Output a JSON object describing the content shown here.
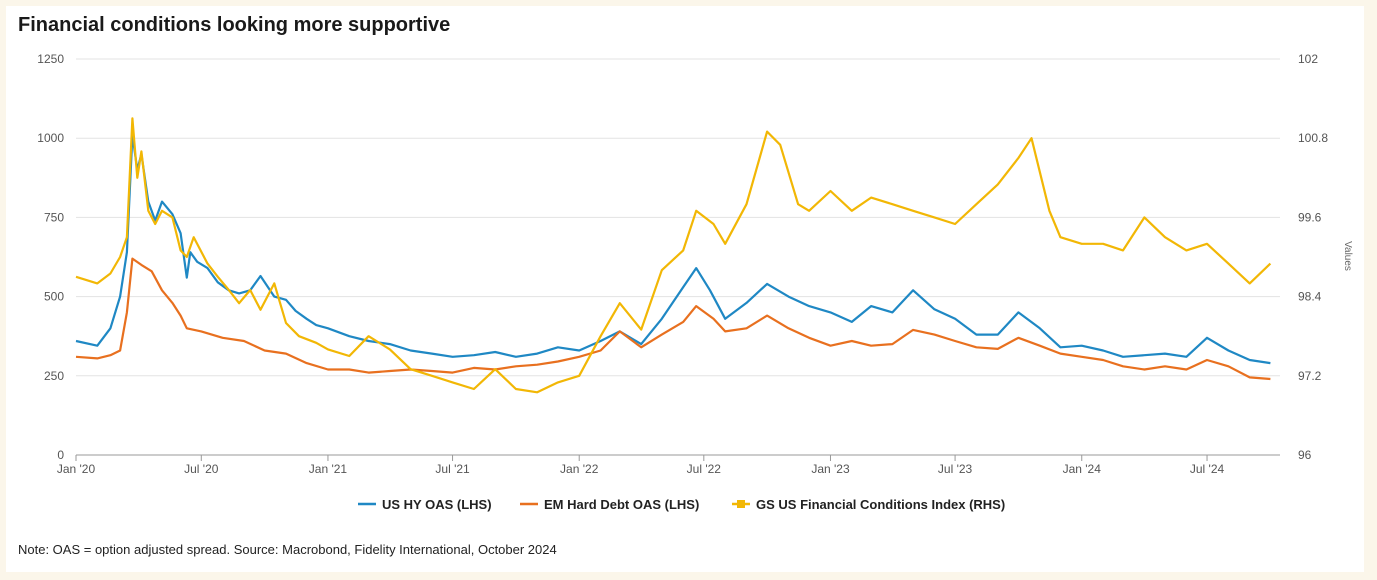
{
  "title": "Financial conditions looking more supportive",
  "note": "Note: OAS = option adjusted spread. Source: Macrobond, Fidelity International, October 2024",
  "chart_data": {
    "type": "line",
    "title": "Financial conditions looking more supportive",
    "x_tick_labels": [
      "Jan '20",
      "Jul '20",
      "Jan '21",
      "Jul '21",
      "Jan '22",
      "Jul '22",
      "Jan '23",
      "Jul '23",
      "Jan '24",
      "Jul '24"
    ],
    "y_left": {
      "ticks": [
        0,
        250,
        500,
        750,
        1000,
        1250
      ],
      "ylim": [
        0,
        1250
      ]
    },
    "y_right": {
      "ticks": [
        "96",
        "97.2",
        "98.4",
        "99.6",
        "100.8",
        "102"
      ],
      "ylim": [
        96,
        102
      ],
      "label": "Values"
    },
    "grid": true,
    "legend_position": "bottom-center",
    "series": [
      {
        "name": "US HY OAS (LHS)",
        "axis": "left",
        "color": "#1f88c4",
        "points": [
          [
            "2020-01",
            360
          ],
          [
            "2020-02",
            345
          ],
          [
            "2020-02-20",
            400
          ],
          [
            "2020-03-05",
            500
          ],
          [
            "2020-03-15",
            640
          ],
          [
            "2020-03-23",
            1010
          ],
          [
            "2020-03-30",
            900
          ],
          [
            "2020-04-05",
            950
          ],
          [
            "2020-04-15",
            800
          ],
          [
            "2020-04-25",
            740
          ],
          [
            "2020-05-05",
            800
          ],
          [
            "2020-05-20",
            760
          ],
          [
            "2020-06-01",
            700
          ],
          [
            "2020-06-10",
            560
          ],
          [
            "2020-06-15",
            640
          ],
          [
            "2020-06-25",
            610
          ],
          [
            "2020-07-10",
            590
          ],
          [
            "2020-07-25",
            545
          ],
          [
            "2020-08-10",
            520
          ],
          [
            "2020-08-25",
            510
          ],
          [
            "2020-09-10",
            520
          ],
          [
            "2020-09-25",
            565
          ],
          [
            "2020-10-15",
            500
          ],
          [
            "2020-11-01",
            490
          ],
          [
            "2020-11-15",
            455
          ],
          [
            "2020-12-01",
            430
          ],
          [
            "2020-12-15",
            410
          ],
          [
            "2021-01-01",
            400
          ],
          [
            "2021-02-01",
            375
          ],
          [
            "2021-03-01",
            360
          ],
          [
            "2021-04-01",
            350
          ],
          [
            "2021-05-01",
            330
          ],
          [
            "2021-06-01",
            320
          ],
          [
            "2021-07-01",
            310
          ],
          [
            "2021-08-01",
            315
          ],
          [
            "2021-09-01",
            325
          ],
          [
            "2021-10-01",
            310
          ],
          [
            "2021-11-01",
            320
          ],
          [
            "2021-12-01",
            340
          ],
          [
            "2022-01-01",
            330
          ],
          [
            "2022-02-01",
            360
          ],
          [
            "2022-03-01",
            390
          ],
          [
            "2022-04-01",
            350
          ],
          [
            "2022-05-01",
            430
          ],
          [
            "2022-06-01",
            530
          ],
          [
            "2022-06-20",
            590
          ],
          [
            "2022-07-10",
            520
          ],
          [
            "2022-08-01",
            430
          ],
          [
            "2022-09-01",
            480
          ],
          [
            "2022-10-01",
            540
          ],
          [
            "2022-11-01",
            500
          ],
          [
            "2022-12-01",
            470
          ],
          [
            "2023-01-01",
            450
          ],
          [
            "2023-02-01",
            420
          ],
          [
            "2023-03-01",
            470
          ],
          [
            "2023-04-01",
            450
          ],
          [
            "2023-05-01",
            520
          ],
          [
            "2023-06-01",
            460
          ],
          [
            "2023-07-01",
            430
          ],
          [
            "2023-08-01",
            380
          ],
          [
            "2023-09-01",
            380
          ],
          [
            "2023-10-01",
            450
          ],
          [
            "2023-11-01",
            400
          ],
          [
            "2023-12-01",
            340
          ],
          [
            "2024-01-01",
            345
          ],
          [
            "2024-02-01",
            330
          ],
          [
            "2024-03-01",
            310
          ],
          [
            "2024-04-01",
            315
          ],
          [
            "2024-05-01",
            320
          ],
          [
            "2024-06-01",
            310
          ],
          [
            "2024-07-01",
            370
          ],
          [
            "2024-08-01",
            330
          ],
          [
            "2024-09-01",
            300
          ],
          [
            "2024-10-01",
            290
          ]
        ]
      },
      {
        "name": "EM Hard Debt OAS (LHS)",
        "axis": "left",
        "color": "#e8701f",
        "points": [
          [
            "2020-01",
            310
          ],
          [
            "2020-02",
            305
          ],
          [
            "2020-02-20",
            315
          ],
          [
            "2020-03-05",
            330
          ],
          [
            "2020-03-15",
            450
          ],
          [
            "2020-03-23",
            620
          ],
          [
            "2020-04-05",
            600
          ],
          [
            "2020-04-20",
            580
          ],
          [
            "2020-05-05",
            520
          ],
          [
            "2020-05-20",
            480
          ],
          [
            "2020-06-01",
            440
          ],
          [
            "2020-06-10",
            400
          ],
          [
            "2020-07-01",
            390
          ],
          [
            "2020-08-01",
            370
          ],
          [
            "2020-09-01",
            360
          ],
          [
            "2020-10-01",
            330
          ],
          [
            "2020-11-01",
            320
          ],
          [
            "2020-12-01",
            290
          ],
          [
            "2021-01-01",
            270
          ],
          [
            "2021-02-01",
            270
          ],
          [
            "2021-03-01",
            260
          ],
          [
            "2021-04-01",
            265
          ],
          [
            "2021-05-01",
            270
          ],
          [
            "2021-06-01",
            265
          ],
          [
            "2021-07-01",
            260
          ],
          [
            "2021-08-01",
            275
          ],
          [
            "2021-09-01",
            270
          ],
          [
            "2021-10-01",
            280
          ],
          [
            "2021-11-01",
            285
          ],
          [
            "2021-12-01",
            295
          ],
          [
            "2022-01-01",
            310
          ],
          [
            "2022-02-01",
            330
          ],
          [
            "2022-03-01",
            390
          ],
          [
            "2022-04-01",
            340
          ],
          [
            "2022-05-01",
            380
          ],
          [
            "2022-06-01",
            420
          ],
          [
            "2022-06-20",
            470
          ],
          [
            "2022-07-15",
            430
          ],
          [
            "2022-08-01",
            390
          ],
          [
            "2022-09-01",
            400
          ],
          [
            "2022-10-01",
            440
          ],
          [
            "2022-11-01",
            400
          ],
          [
            "2022-12-01",
            370
          ],
          [
            "2023-01-01",
            345
          ],
          [
            "2023-02-01",
            360
          ],
          [
            "2023-03-01",
            345
          ],
          [
            "2023-04-01",
            350
          ],
          [
            "2023-05-01",
            395
          ],
          [
            "2023-06-01",
            380
          ],
          [
            "2023-07-01",
            360
          ],
          [
            "2023-08-01",
            340
          ],
          [
            "2023-09-01",
            335
          ],
          [
            "2023-10-01",
            370
          ],
          [
            "2023-11-01",
            345
          ],
          [
            "2023-12-01",
            320
          ],
          [
            "2024-01-01",
            310
          ],
          [
            "2024-02-01",
            300
          ],
          [
            "2024-03-01",
            280
          ],
          [
            "2024-04-01",
            270
          ],
          [
            "2024-05-01",
            280
          ],
          [
            "2024-06-01",
            270
          ],
          [
            "2024-07-01",
            300
          ],
          [
            "2024-08-01",
            280
          ],
          [
            "2024-09-01",
            245
          ],
          [
            "2024-10-01",
            240
          ]
        ]
      },
      {
        "name": "GS US Financial Conditions Index (RHS)",
        "axis": "right",
        "color": "#f2b705",
        "marker": true,
        "points": [
          [
            "2020-01",
            98.7
          ],
          [
            "2020-02",
            98.6
          ],
          [
            "2020-02-20",
            98.75
          ],
          [
            "2020-03-05",
            99.0
          ],
          [
            "2020-03-15",
            99.3
          ],
          [
            "2020-03-23",
            101.1
          ],
          [
            "2020-03-30",
            100.2
          ],
          [
            "2020-04-05",
            100.6
          ],
          [
            "2020-04-15",
            99.7
          ],
          [
            "2020-04-25",
            99.5
          ],
          [
            "2020-05-05",
            99.7
          ],
          [
            "2020-05-20",
            99.6
          ],
          [
            "2020-06-01",
            99.1
          ],
          [
            "2020-06-10",
            99.0
          ],
          [
            "2020-06-20",
            99.3
          ],
          [
            "2020-07-10",
            98.9
          ],
          [
            "2020-07-25",
            98.7
          ],
          [
            "2020-08-10",
            98.5
          ],
          [
            "2020-08-25",
            98.3
          ],
          [
            "2020-09-10",
            98.5
          ],
          [
            "2020-09-25",
            98.2
          ],
          [
            "2020-10-15",
            98.6
          ],
          [
            "2020-11-01",
            98.0
          ],
          [
            "2020-11-20",
            97.8
          ],
          [
            "2020-12-15",
            97.7
          ],
          [
            "2021-01-01",
            97.6
          ],
          [
            "2021-02-01",
            97.5
          ],
          [
            "2021-03-01",
            97.8
          ],
          [
            "2021-04-01",
            97.6
          ],
          [
            "2021-05-01",
            97.3
          ],
          [
            "2021-06-01",
            97.2
          ],
          [
            "2021-07-01",
            97.1
          ],
          [
            "2021-08-01",
            97.0
          ],
          [
            "2021-09-01",
            97.3
          ],
          [
            "2021-10-01",
            97.0
          ],
          [
            "2021-11-01",
            96.95
          ],
          [
            "2021-12-01",
            97.1
          ],
          [
            "2022-01-01",
            97.2
          ],
          [
            "2022-02-01",
            97.8
          ],
          [
            "2022-03-01",
            98.3
          ],
          [
            "2022-04-01",
            97.9
          ],
          [
            "2022-05-01",
            98.8
          ],
          [
            "2022-06-01",
            99.1
          ],
          [
            "2022-06-20",
            99.7
          ],
          [
            "2022-07-15",
            99.5
          ],
          [
            "2022-08-01",
            99.2
          ],
          [
            "2022-09-01",
            99.8
          ],
          [
            "2022-10-01",
            100.9
          ],
          [
            "2022-10-20",
            100.7
          ],
          [
            "2022-11-15",
            99.8
          ],
          [
            "2022-12-01",
            99.7
          ],
          [
            "2023-01-01",
            100.0
          ],
          [
            "2023-02-01",
            99.7
          ],
          [
            "2023-03-01",
            99.9
          ],
          [
            "2023-04-01",
            99.8
          ],
          [
            "2023-05-01",
            99.7
          ],
          [
            "2023-06-01",
            99.6
          ],
          [
            "2023-07-01",
            99.5
          ],
          [
            "2023-08-01",
            99.8
          ],
          [
            "2023-09-01",
            100.1
          ],
          [
            "2023-10-01",
            100.5
          ],
          [
            "2023-10-20",
            100.8
          ],
          [
            "2023-11-15",
            99.7
          ],
          [
            "2023-12-01",
            99.3
          ],
          [
            "2024-01-01",
            99.2
          ],
          [
            "2024-02-01",
            99.2
          ],
          [
            "2024-03-01",
            99.1
          ],
          [
            "2024-04-01",
            99.6
          ],
          [
            "2024-05-01",
            99.3
          ],
          [
            "2024-06-01",
            99.1
          ],
          [
            "2024-07-01",
            99.2
          ],
          [
            "2024-08-01",
            98.9
          ],
          [
            "2024-09-01",
            98.6
          ],
          [
            "2024-10-01",
            98.9
          ]
        ]
      }
    ]
  }
}
